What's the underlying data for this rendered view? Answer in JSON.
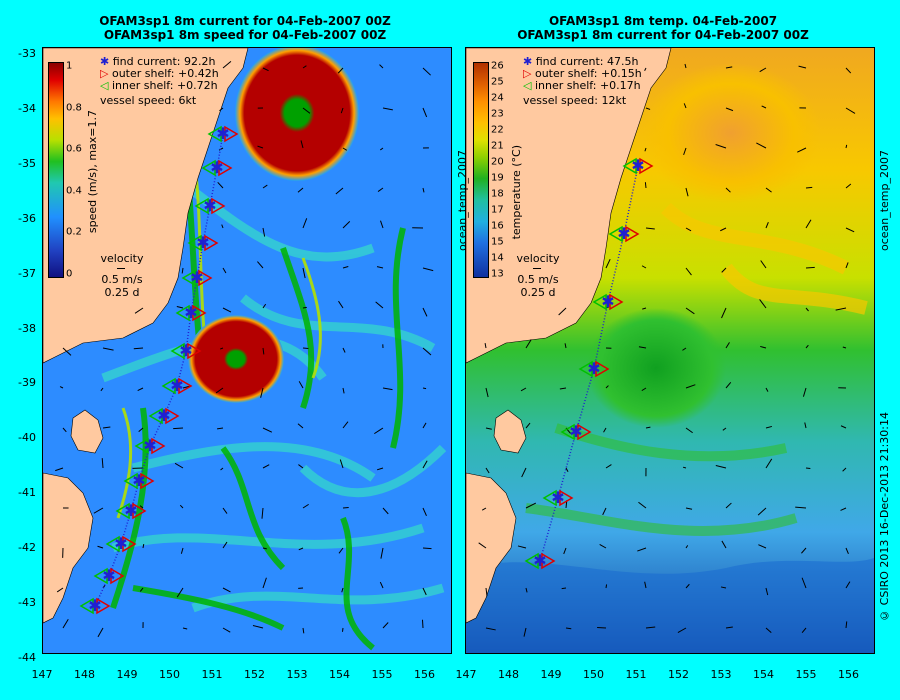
{
  "left": {
    "title_line1": "OFAM3sp1 8m current for 04-Feb-2007 00Z",
    "title_line2": "OFAM3sp1 8m speed for 04-Feb-2007 00Z",
    "legend": {
      "find": "find current: 92.2h",
      "outer": "outer shelf: +0.42h",
      "inner": "inner shelf: +0.72h",
      "vessel": "vessel speed: 6kt"
    },
    "colorbar": {
      "label": "speed (m/s), max=1.7",
      "ticks": [
        "1",
        "0.8",
        "0.6",
        "0.4",
        "0.2",
        "0"
      ]
    },
    "velocity": {
      "label": "velocity",
      "scale": "0.5 m/s",
      "time": "0.25 d"
    }
  },
  "right": {
    "title_line1": "OFAM3sp1 8m temp. 04-Feb-2007",
    "title_line2": "OFAM3sp1 8m current for 04-Feb-2007 00Z",
    "legend": {
      "find": "find current: 47.5h",
      "outer": "outer shelf: +0.15h",
      "inner": "inner shelf: +0.17h",
      "vessel": "vessel speed: 12kt"
    },
    "colorbar": {
      "label": "temperature (°C)",
      "side_label": "ocean_temp_2007",
      "ticks": [
        "26",
        "25",
        "24",
        "23",
        "22",
        "21",
        "20",
        "19",
        "18",
        "17",
        "16",
        "15",
        "14",
        "13"
      ]
    },
    "velocity": {
      "label": "velocity",
      "scale": "0.5 m/s",
      "time": "0.25 d"
    },
    "right_side_label": "ocean_temp_2007"
  },
  "y_ticks": [
    "-33",
    "-34",
    "-35",
    "-36",
    "-37",
    "-38",
    "-39",
    "-40",
    "-41",
    "-42",
    "-43",
    "-44"
  ],
  "x_ticks_left": [
    "147",
    "148",
    "149",
    "150",
    "151",
    "152",
    "153",
    "154",
    "155",
    "156"
  ],
  "x_ticks_right": [
    "147",
    "148",
    "149",
    "150",
    "151",
    "152",
    "153",
    "154",
    "155",
    "156"
  ],
  "copyright": "© CSIRO 2013   16-Dec-2013 21:30:14",
  "colors": {
    "background": "#00ffff",
    "land": "#ffc9a0",
    "eddy": "#b40000",
    "track": "#2020d0"
  }
}
